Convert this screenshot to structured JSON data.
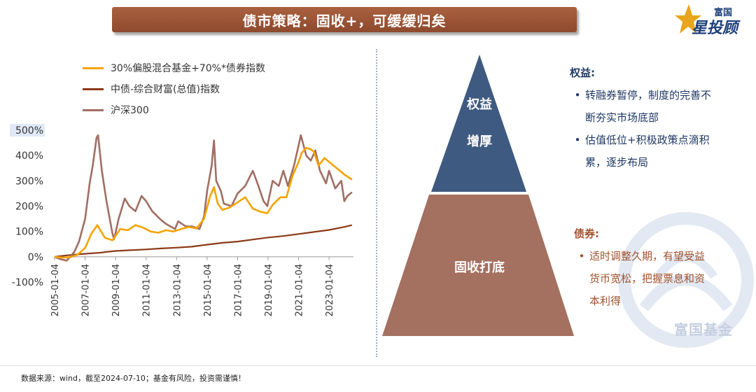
{
  "title": "债市策略：固收+，可缓缓归矣",
  "logo": {
    "top": "富国",
    "main": "星投顾"
  },
  "chart_data": {
    "type": "line",
    "ylim": [
      -100,
      500
    ],
    "yticks": [
      "-100%",
      "0%",
      "100%",
      "200%",
      "300%",
      "400%",
      "500%"
    ],
    "ytick_values": [
      -100,
      0,
      100,
      200,
      300,
      400,
      500
    ],
    "xticks": [
      "2005-01-04",
      "2007-01-04",
      "2009-01-04",
      "2011-01-04",
      "2013-01-04",
      "2015-01-04",
      "2017-01-04",
      "2019-01-04",
      "2021-01-04",
      "2023-01-04"
    ],
    "xtick_years": [
      2005,
      2007,
      2009,
      2011,
      2013,
      2015,
      2017,
      2019,
      2021,
      2023
    ],
    "xlim_years": [
      2005,
      2024.6
    ],
    "legend_placement": "top-left",
    "series": [
      {
        "name": "30%偏股混合基金+70%*债券指数",
        "color": "#f5a300",
        "x": [
          2005,
          2005.5,
          2006,
          2006.5,
          2007,
          2007.4,
          2007.8,
          2008.3,
          2008.8,
          2009.3,
          2009.8,
          2010.3,
          2010.8,
          2011.3,
          2011.8,
          2012.3,
          2012.8,
          2013.3,
          2013.8,
          2014.3,
          2014.8,
          2015.2,
          2015.45,
          2015.7,
          2016.0,
          2016.5,
          2017.0,
          2017.5,
          2018.0,
          2018.5,
          2018.95,
          2019.3,
          2019.8,
          2020.2,
          2020.6,
          2021.0,
          2021.2,
          2021.5,
          2021.8,
          2022.0,
          2022.3,
          2022.7,
          2023.0,
          2023.5,
          2024.0,
          2024.5
        ],
        "y": [
          0,
          -3,
          -2,
          8,
          35,
          90,
          125,
          75,
          65,
          110,
          105,
          125,
          115,
          100,
          95,
          105,
          100,
          110,
          118,
          112,
          150,
          240,
          275,
          210,
          185,
          195,
          215,
          235,
          190,
          178,
          172,
          205,
          235,
          235,
          320,
          375,
          410,
          430,
          425,
          415,
          360,
          390,
          375,
          350,
          325,
          305
        ]
      },
      {
        "name": "中债-综合财富(总值)指数",
        "color": "#8b3a17",
        "x": [
          2005,
          2006,
          2007,
          2008,
          2008.5,
          2009,
          2010,
          2011,
          2012,
          2013,
          2014,
          2015,
          2016,
          2017,
          2018,
          2019,
          2020,
          2021,
          2022,
          2023,
          2024,
          2024.5
        ],
        "y": [
          0,
          7,
          12,
          16,
          20,
          23,
          26,
          29,
          33,
          36,
          40,
          48,
          55,
          60,
          68,
          76,
          82,
          90,
          98,
          106,
          118,
          125
        ]
      },
      {
        "name": "沪深300",
        "color": "#a06e62",
        "x": [
          2005,
          2005.4,
          2005.8,
          2006.3,
          2006.6,
          2007.0,
          2007.3,
          2007.5,
          2007.75,
          2007.85,
          2008.1,
          2008.4,
          2008.8,
          2008.9,
          2009.2,
          2009.6,
          2009.9,
          2010.3,
          2010.7,
          2011.0,
          2011.4,
          2011.9,
          2012.3,
          2012.9,
          2013.1,
          2013.6,
          2014.0,
          2014.5,
          2014.8,
          2015.0,
          2015.3,
          2015.45,
          2015.6,
          2015.9,
          2016.1,
          2016.6,
          2017.0,
          2017.5,
          2018.0,
          2018.3,
          2018.7,
          2018.95,
          2019.3,
          2019.7,
          2020.0,
          2020.3,
          2020.7,
          2021.0,
          2021.15,
          2021.5,
          2021.8,
          2022.1,
          2022.4,
          2022.8,
          2023.0,
          2023.4,
          2023.8,
          2024.0,
          2024.2,
          2024.5
        ],
        "y": [
          0,
          -10,
          -15,
          20,
          60,
          150,
          290,
          360,
          470,
          480,
          340,
          220,
          90,
          70,
          150,
          230,
          200,
          180,
          240,
          220,
          180,
          150,
          130,
          110,
          140,
          120,
          120,
          110,
          160,
          260,
          360,
          460,
          300,
          260,
          210,
          200,
          250,
          280,
          340,
          290,
          220,
          200,
          300,
          280,
          340,
          280,
          360,
          440,
          480,
          400,
          380,
          420,
          340,
          290,
          340,
          270,
          300,
          220,
          240,
          255
        ]
      }
    ]
  },
  "pyramid": {
    "top_label_1": "权益",
    "top_label_2": "增厚",
    "bottom_label": "固收打底",
    "top_color": "#3f5a80",
    "bottom_color": "#a47060"
  },
  "equity": {
    "title": "权益:",
    "bullets": [
      "转融券暂停，制度的完善不",
      "断夯实市场底部",
      "估值低位+积极政策点滴积",
      "累，逐步布局"
    ]
  },
  "bond": {
    "title": "债券:",
    "bullets": [
      "适时调整久期，有望受益",
      "货币宽松，把握票息和资",
      "本利得"
    ]
  },
  "watermark": "富国基金",
  "footer": "数据来源：wind，截至2024-07-10；基金有风险，投资需谨慎！"
}
